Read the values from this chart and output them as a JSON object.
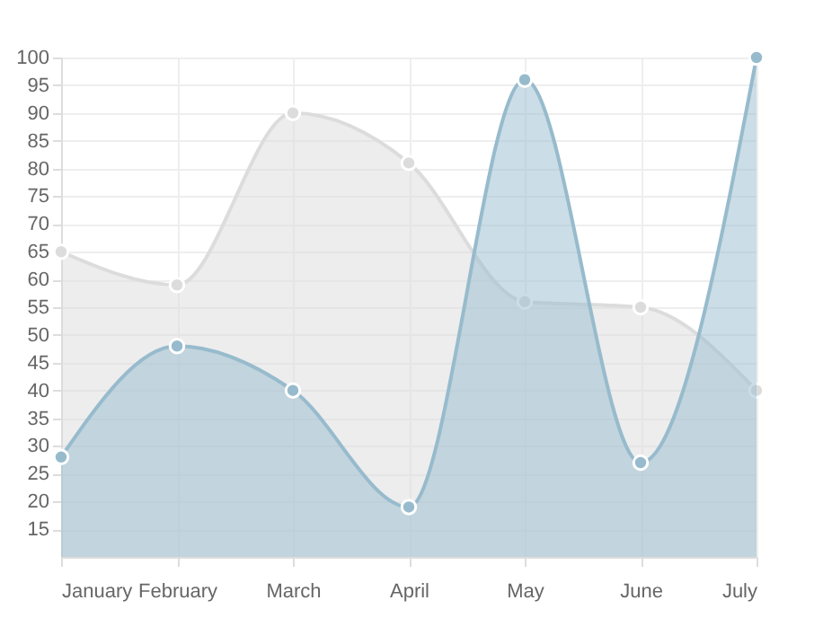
{
  "chart_data": {
    "type": "area",
    "categories": [
      "January",
      "February",
      "March",
      "April",
      "May",
      "June",
      "July"
    ],
    "series": [
      {
        "color": "#dcdcdc",
        "values": [
          65,
          59,
          90,
          81,
          56,
          55,
          40
        ]
      },
      {
        "color": "#97bbcd",
        "values": [
          28,
          48,
          40,
          19,
          96,
          27,
          100
        ]
      }
    ],
    "ylim": [
      10,
      100
    ],
    "yticks": [
      15,
      20,
      25,
      30,
      35,
      40,
      45,
      50,
      55,
      60,
      65,
      70,
      75,
      80,
      85,
      90,
      95,
      100
    ],
    "grid": true,
    "marker": "circle"
  }
}
